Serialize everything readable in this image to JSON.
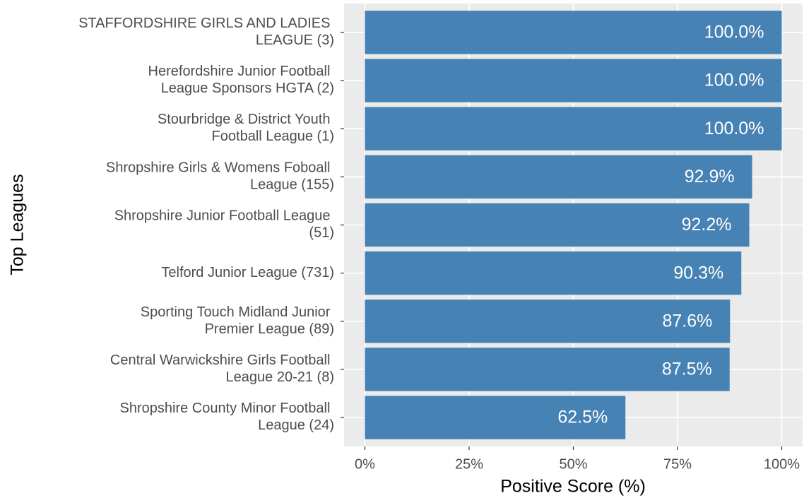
{
  "chart_data": {
    "type": "bar",
    "orientation": "horizontal",
    "xlabel": "Positive Score (%)",
    "ylabel": "Top Leagues",
    "categories": [
      "STAFFORDSHIRE GIRLS AND LADIES\nLEAGUE (3)",
      "Herefordshire Junior Football\nLeague Sponsors HGTA (2)",
      "Stourbridge & District Youth\nFootball League (1)",
      "Shropshire Girls & Womens Foboall\nLeague (155)",
      "Shropshire Junior Football League\n(51)",
      "Telford Junior League (731)",
      "Sporting Touch Midland Junior\nPremier League (89)",
      "Central Warwickshire Girls Football\nLeague 20-21 (8)",
      "Shropshire County Minor Football\nLeague (24)"
    ],
    "values": [
      100,
      100,
      100,
      92.9,
      92.2,
      90.3,
      87.6,
      87.5,
      62.5
    ],
    "value_labels": [
      "100.0%",
      "100.0%",
      "100.0%",
      "92.9%",
      "92.2%",
      "90.3%",
      "87.6%",
      "87.5%",
      "62.5%"
    ],
    "color": "#4682b4",
    "xlim": [
      -5,
      105
    ],
    "xticks": [
      {
        "value": 0,
        "label": "0%"
      },
      {
        "value": 25,
        "label": "25%"
      },
      {
        "value": 50,
        "label": "50%"
      },
      {
        "value": 75,
        "label": "75%"
      },
      {
        "value": 100,
        "label": "100%"
      }
    ],
    "grid": true
  }
}
